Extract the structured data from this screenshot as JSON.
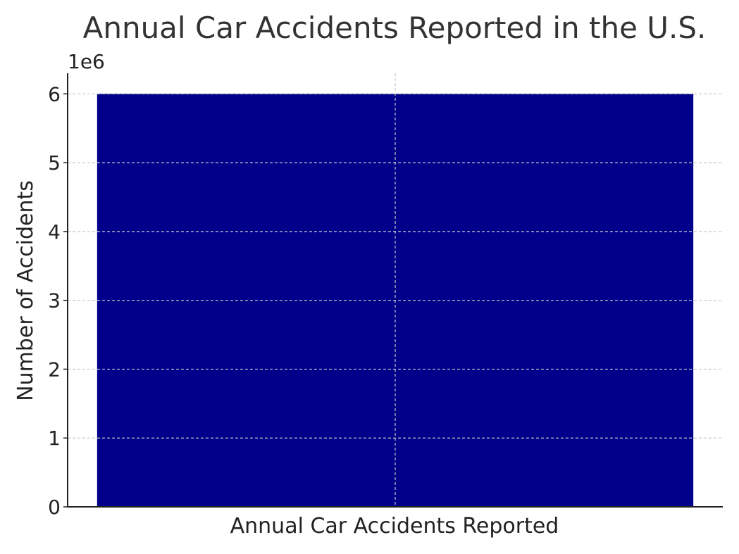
{
  "chart_data": {
    "type": "bar",
    "title": "Annual Car Accidents Reported in the U.S.",
    "xlabel": "Annual Car Accidents Reported",
    "ylabel": "Number of Accidents",
    "y_offset_label": "1e6",
    "categories": [
      "Annual Car Accidents Reported"
    ],
    "values": [
      6000000
    ],
    "ylim": [
      0,
      6300000
    ],
    "yticks": [
      0,
      1000000,
      2000000,
      3000000,
      4000000,
      5000000,
      6000000
    ],
    "ytick_labels": [
      "0",
      "1",
      "2",
      "3",
      "4",
      "5",
      "6"
    ],
    "grid": true,
    "colors": {
      "bar": "#00008b",
      "axis": "#222222",
      "grid": "#c8c8c8",
      "text": "#333333"
    }
  }
}
